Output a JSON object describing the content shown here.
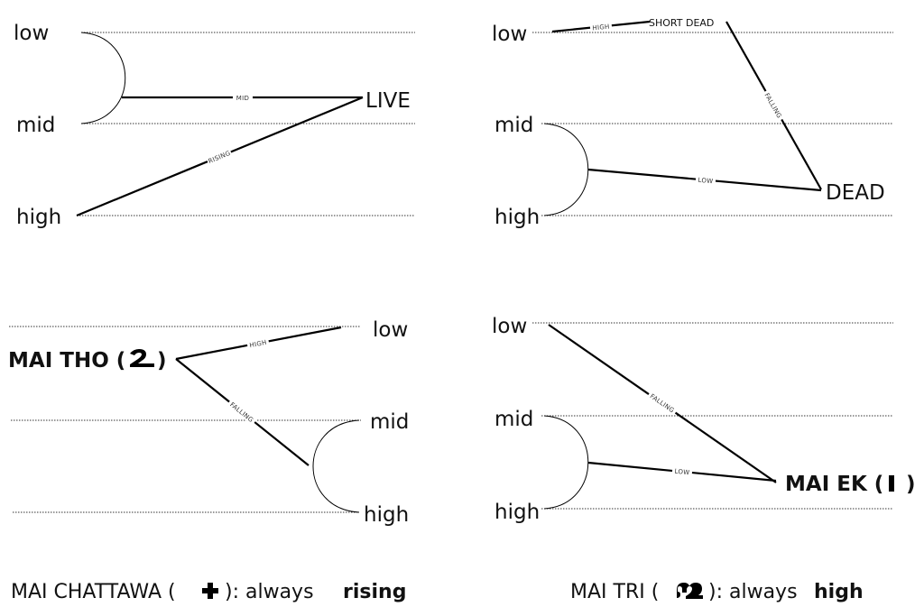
{
  "panels": [
    {
      "levels": [
        "low",
        "mid",
        "high"
      ],
      "target": "LIVE",
      "edges": [
        "MID",
        "RISING"
      ]
    },
    {
      "levels": [
        "low",
        "mid",
        "high"
      ],
      "target": "DEAD",
      "short_dead": "SHORT DEAD",
      "edges": [
        "HIGH",
        "FALLING",
        "LOW"
      ]
    },
    {
      "levels": [
        "low",
        "mid",
        "high"
      ],
      "source": "MAI THO (",
      "source_close": ")",
      "mark": "mai-tho-icon",
      "edges": [
        "HIGH",
        "FALLING"
      ]
    },
    {
      "levels": [
        "low",
        "mid",
        "high"
      ],
      "source": "MAI EK (",
      "source_close": ")",
      "mark": "mai-ek-icon",
      "edges": [
        "FALLING",
        "LOW"
      ]
    }
  ],
  "captions": [
    {
      "prefix": "MAI CHATTAWA (",
      "suffix": "): always ",
      "emphasis": "rising",
      "mark": "mai-chattawa-icon"
    },
    {
      "prefix": "MAI TRI (",
      "suffix": "): always ",
      "emphasis": "high",
      "mark": "mai-tri-icon"
    }
  ]
}
